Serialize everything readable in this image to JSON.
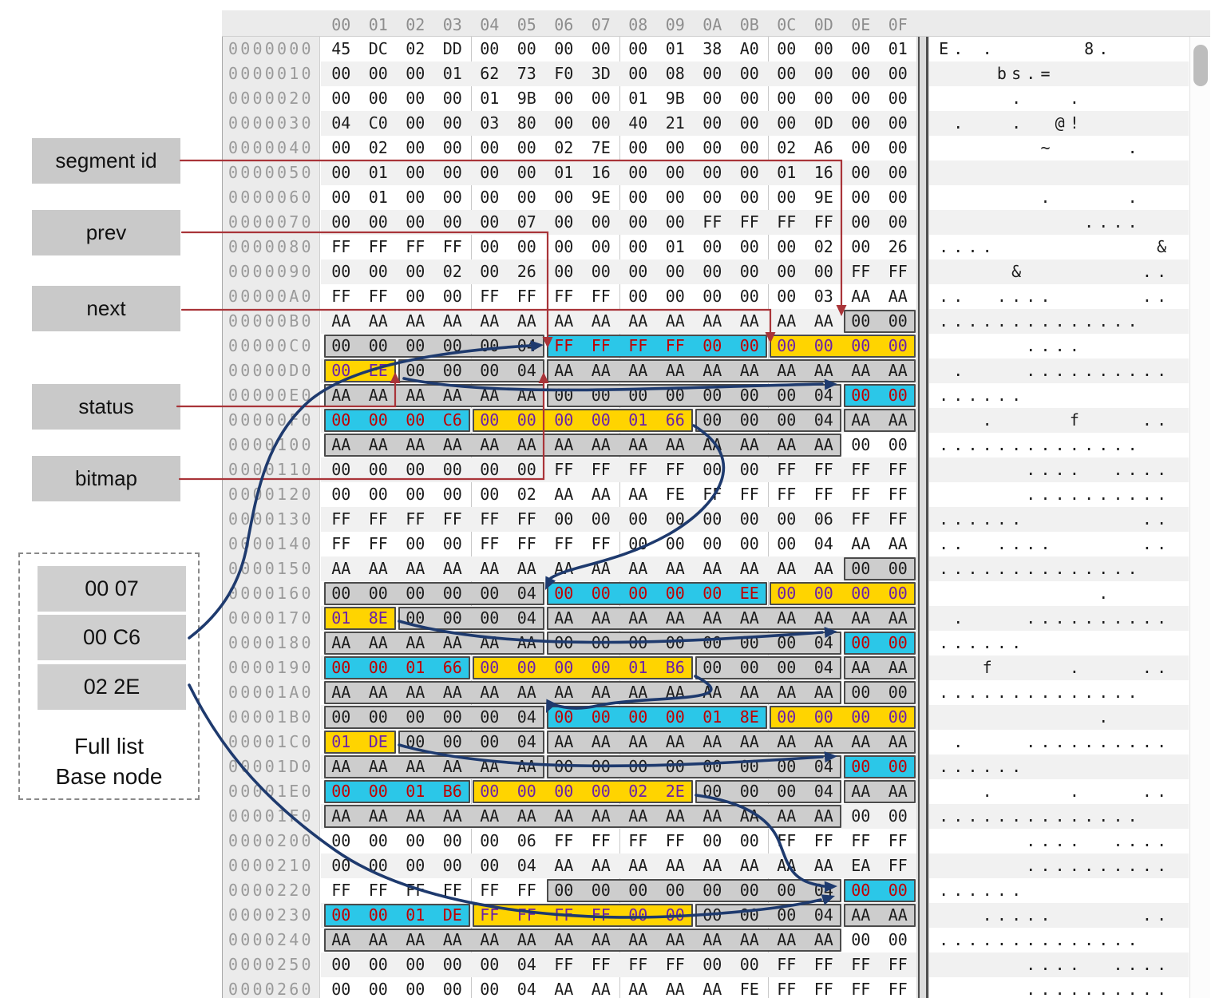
{
  "panel": {
    "column_headers": [
      "00",
      "01",
      "02",
      "03",
      "04",
      "05",
      "06",
      "07",
      "08",
      "09",
      "0A",
      "0B",
      "0C",
      "0D",
      "0E",
      "0F"
    ]
  },
  "labels": {
    "segment_id": "segment id",
    "prev": "prev",
    "next": "next",
    "status": "status",
    "bitmap": "bitmap"
  },
  "full_list": {
    "values": [
      "00 07",
      "00 C6",
      "02 2E"
    ],
    "caption_line1": "Full list",
    "caption_line2": "Base node"
  },
  "colors": {
    "highlight_cyan": "#2bc7e8",
    "highlight_yellow": "#ffd400",
    "box_gray": "#cdcdcd",
    "box_border": "#4b4b4b",
    "text_on_cyan": "#c00000",
    "text_on_yellow": "#6b21a8",
    "arrow_blue": "#1e3a6e",
    "annotation_red": "#a93439",
    "label_bg": "#c9c9c9",
    "zebra_row": "#f1f1f1",
    "chrome_gray": "#ebebeb"
  },
  "annotations": {
    "red_lines": [
      {
        "label": "segment id",
        "target": "00000B0:0E-0F"
      },
      {
        "label": "prev",
        "target": "00000C0:06-0B"
      },
      {
        "label": "next",
        "target": "00000C0:0C-0F"
      },
      {
        "label": "status",
        "target": "00000D0:00-01"
      },
      {
        "label": "bitmap",
        "target": "00000D0:02-05"
      }
    ],
    "blue_links": [
      {
        "from": "00000D0 value 00 EE",
        "to": "00000E0:0E-0F"
      },
      {
        "from": "full list 00 C6",
        "to": "00000C0:06"
      },
      {
        "from": "00000F0 value 01 66",
        "to": "0000160:06"
      },
      {
        "from": "0000170 value 01 8E",
        "to": "0000180:0E-0F"
      },
      {
        "from": "0000190 value 01 B6",
        "to": "00001B0:06"
      },
      {
        "from": "00001C0 value 01 DE",
        "to": "00001D0:0E-0F"
      },
      {
        "from": "00001E0 value 02 2E",
        "to": "0000220:0E-0F"
      },
      {
        "from": "full list 02 2E",
        "to": "0000220:0E-0F"
      }
    ]
  },
  "rows": [
    {
      "addr": "0000000",
      "bytes": [
        "45",
        "DC",
        "02",
        "DD",
        "00",
        "00",
        "00",
        "00",
        "00",
        "01",
        "38",
        "A0",
        "00",
        "00",
        "00",
        "01"
      ],
      "ascii": "E. .      8.    ",
      "spans": []
    },
    {
      "addr": "0000010",
      "bytes": [
        "00",
        "00",
        "00",
        "01",
        "62",
        "73",
        "F0",
        "3D",
        "00",
        "08",
        "00",
        "00",
        "00",
        "00",
        "00",
        "00"
      ],
      "ascii": "    bs.=        ",
      "spans": []
    },
    {
      "addr": "0000020",
      "bytes": [
        "00",
        "00",
        "00",
        "00",
        "01",
        "9B",
        "00",
        "00",
        "01",
        "9B",
        "00",
        "00",
        "00",
        "00",
        "00",
        "00"
      ],
      "ascii": "     .   .      ",
      "spans": []
    },
    {
      "addr": "0000030",
      "bytes": [
        "04",
        "C0",
        "00",
        "00",
        "03",
        "80",
        "00",
        "00",
        "40",
        "21",
        "00",
        "00",
        "00",
        "0D",
        "00",
        "00"
      ],
      "ascii": " .   .  @!      ",
      "spans": []
    },
    {
      "addr": "0000040",
      "bytes": [
        "00",
        "02",
        "00",
        "00",
        "00",
        "00",
        "02",
        "7E",
        "00",
        "00",
        "00",
        "00",
        "02",
        "A6",
        "00",
        "00"
      ],
      "ascii": "       ~     .  ",
      "spans": []
    },
    {
      "addr": "0000050",
      "bytes": [
        "00",
        "01",
        "00",
        "00",
        "00",
        "00",
        "01",
        "16",
        "00",
        "00",
        "00",
        "00",
        "01",
        "16",
        "00",
        "00"
      ],
      "ascii": "                ",
      "spans": []
    },
    {
      "addr": "0000060",
      "bytes": [
        "00",
        "01",
        "00",
        "00",
        "00",
        "00",
        "00",
        "9E",
        "00",
        "00",
        "00",
        "00",
        "00",
        "9E",
        "00",
        "00"
      ],
      "ascii": "       .     .  ",
      "spans": []
    },
    {
      "addr": "0000070",
      "bytes": [
        "00",
        "00",
        "00",
        "00",
        "00",
        "07",
        "00",
        "00",
        "00",
        "00",
        "FF",
        "FF",
        "FF",
        "FF",
        "00",
        "00"
      ],
      "ascii": "          ....  ",
      "spans": []
    },
    {
      "addr": "0000080",
      "bytes": [
        "FF",
        "FF",
        "FF",
        "FF",
        "00",
        "00",
        "00",
        "00",
        "00",
        "01",
        "00",
        "00",
        "00",
        "02",
        "00",
        "26"
      ],
      "ascii": "....           &",
      "spans": []
    },
    {
      "addr": "0000090",
      "bytes": [
        "00",
        "00",
        "00",
        "02",
        "00",
        "26",
        "00",
        "00",
        "00",
        "00",
        "00",
        "00",
        "00",
        "00",
        "FF",
        "FF"
      ],
      "ascii": "     &        ..",
      "spans": []
    },
    {
      "addr": "00000A0",
      "bytes": [
        "FF",
        "FF",
        "00",
        "00",
        "FF",
        "FF",
        "FF",
        "FF",
        "00",
        "00",
        "00",
        "00",
        "00",
        "03",
        "AA",
        "AA"
      ],
      "ascii": "..  ....      ..",
      "spans": []
    },
    {
      "addr": "00000B0",
      "bytes": [
        "AA",
        "AA",
        "AA",
        "AA",
        "AA",
        "AA",
        "AA",
        "AA",
        "AA",
        "AA",
        "AA",
        "AA",
        "AA",
        "AA",
        "00",
        "00"
      ],
      "ascii": "..............  ",
      "spans": [
        [
          14,
          15,
          "gray"
        ]
      ]
    },
    {
      "addr": "00000C0",
      "bytes": [
        "00",
        "00",
        "00",
        "00",
        "00",
        "04",
        "FF",
        "FF",
        "FF",
        "FF",
        "00",
        "00",
        "00",
        "00",
        "00",
        "00"
      ],
      "ascii": "      ....      ",
      "spans": [
        [
          0,
          5,
          "gray"
        ],
        [
          6,
          11,
          "cyan"
        ],
        [
          12,
          15,
          "yellow"
        ]
      ]
    },
    {
      "addr": "00000D0",
      "bytes": [
        "00",
        "EE",
        "00",
        "00",
        "00",
        "04",
        "AA",
        "AA",
        "AA",
        "AA",
        "AA",
        "AA",
        "AA",
        "AA",
        "AA",
        "AA"
      ],
      "ascii": " .    ..........",
      "spans": [
        [
          0,
          1,
          "yellow"
        ],
        [
          2,
          5,
          "gray"
        ],
        [
          6,
          15,
          "gray"
        ]
      ]
    },
    {
      "addr": "00000E0",
      "bytes": [
        "AA",
        "AA",
        "AA",
        "AA",
        "AA",
        "AA",
        "00",
        "00",
        "00",
        "00",
        "00",
        "00",
        "00",
        "04",
        "00",
        "00"
      ],
      "ascii": "......          ",
      "spans": [
        [
          0,
          5,
          "gray"
        ],
        [
          6,
          13,
          "gray"
        ],
        [
          14,
          15,
          "cyan"
        ]
      ]
    },
    {
      "addr": "00000F0",
      "bytes": [
        "00",
        "00",
        "00",
        "C6",
        "00",
        "00",
        "00",
        "00",
        "01",
        "66",
        "00",
        "00",
        "00",
        "04",
        "AA",
        "AA"
      ],
      "ascii": "   .     f    ..",
      "spans": [
        [
          0,
          3,
          "cyan"
        ],
        [
          4,
          9,
          "yellow"
        ],
        [
          10,
          13,
          "gray"
        ],
        [
          14,
          15,
          "gray"
        ]
      ]
    },
    {
      "addr": "0000100",
      "bytes": [
        "AA",
        "AA",
        "AA",
        "AA",
        "AA",
        "AA",
        "AA",
        "AA",
        "AA",
        "AA",
        "AA",
        "AA",
        "AA",
        "AA",
        "00",
        "00"
      ],
      "ascii": "..............  ",
      "spans": [
        [
          0,
          13,
          "gray"
        ]
      ]
    },
    {
      "addr": "0000110",
      "bytes": [
        "00",
        "00",
        "00",
        "00",
        "00",
        "00",
        "FF",
        "FF",
        "FF",
        "FF",
        "00",
        "00",
        "FF",
        "FF",
        "FF",
        "FF"
      ],
      "ascii": "      ....  ....",
      "spans": []
    },
    {
      "addr": "0000120",
      "bytes": [
        "00",
        "00",
        "00",
        "00",
        "00",
        "02",
        "AA",
        "AA",
        "AA",
        "FE",
        "FF",
        "FF",
        "FF",
        "FF",
        "FF",
        "FF"
      ],
      "ascii": "      ..........",
      "spans": []
    },
    {
      "addr": "0000130",
      "bytes": [
        "FF",
        "FF",
        "FF",
        "FF",
        "FF",
        "FF",
        "00",
        "00",
        "00",
        "00",
        "00",
        "00",
        "00",
        "06",
        "FF",
        "FF"
      ],
      "ascii": "......        ..",
      "spans": []
    },
    {
      "addr": "0000140",
      "bytes": [
        "FF",
        "FF",
        "00",
        "00",
        "FF",
        "FF",
        "FF",
        "FF",
        "00",
        "00",
        "00",
        "00",
        "00",
        "04",
        "AA",
        "AA"
      ],
      "ascii": "..  ....      ..",
      "spans": []
    },
    {
      "addr": "0000150",
      "bytes": [
        "AA",
        "AA",
        "AA",
        "AA",
        "AA",
        "AA",
        "AA",
        "AA",
        "AA",
        "AA",
        "AA",
        "AA",
        "AA",
        "AA",
        "00",
        "00"
      ],
      "ascii": "..............  ",
      "spans": [
        [
          14,
          15,
          "gray"
        ]
      ]
    },
    {
      "addr": "0000160",
      "bytes": [
        "00",
        "00",
        "00",
        "00",
        "00",
        "04",
        "00",
        "00",
        "00",
        "00",
        "00",
        "EE",
        "00",
        "00",
        "00",
        "00"
      ],
      "ascii": "           .    ",
      "spans": [
        [
          0,
          5,
          "gray"
        ],
        [
          6,
          11,
          "cyan"
        ],
        [
          12,
          15,
          "yellow"
        ]
      ]
    },
    {
      "addr": "0000170",
      "bytes": [
        "01",
        "8E",
        "00",
        "00",
        "00",
        "04",
        "AA",
        "AA",
        "AA",
        "AA",
        "AA",
        "AA",
        "AA",
        "AA",
        "AA",
        "AA"
      ],
      "ascii": " .    ..........",
      "spans": [
        [
          0,
          1,
          "yellow"
        ],
        [
          2,
          5,
          "gray"
        ],
        [
          6,
          15,
          "gray"
        ]
      ]
    },
    {
      "addr": "0000180",
      "bytes": [
        "AA",
        "AA",
        "AA",
        "AA",
        "AA",
        "AA",
        "00",
        "00",
        "00",
        "00",
        "00",
        "00",
        "00",
        "04",
        "00",
        "00"
      ],
      "ascii": "......          ",
      "spans": [
        [
          0,
          5,
          "gray"
        ],
        [
          6,
          13,
          "gray"
        ],
        [
          14,
          15,
          "cyan"
        ]
      ]
    },
    {
      "addr": "0000190",
      "bytes": [
        "00",
        "00",
        "01",
        "66",
        "00",
        "00",
        "00",
        "00",
        "01",
        "B6",
        "00",
        "00",
        "00",
        "04",
        "AA",
        "AA"
      ],
      "ascii": "   f     .    ..",
      "spans": [
        [
          0,
          3,
          "cyan"
        ],
        [
          4,
          9,
          "yellow"
        ],
        [
          10,
          13,
          "gray"
        ],
        [
          14,
          15,
          "gray"
        ]
      ]
    },
    {
      "addr": "00001A0",
      "bytes": [
        "AA",
        "AA",
        "AA",
        "AA",
        "AA",
        "AA",
        "AA",
        "AA",
        "AA",
        "AA",
        "AA",
        "AA",
        "AA",
        "AA",
        "00",
        "00"
      ],
      "ascii": "..............  ",
      "spans": [
        [
          0,
          13,
          "gray"
        ],
        [
          14,
          15,
          "gray"
        ]
      ]
    },
    {
      "addr": "00001B0",
      "bytes": [
        "00",
        "00",
        "00",
        "00",
        "00",
        "04",
        "00",
        "00",
        "00",
        "00",
        "01",
        "8E",
        "00",
        "00",
        "00",
        "00"
      ],
      "ascii": "           .    ",
      "spans": [
        [
          0,
          5,
          "gray"
        ],
        [
          6,
          11,
          "cyan"
        ],
        [
          12,
          15,
          "yellow"
        ]
      ]
    },
    {
      "addr": "00001C0",
      "bytes": [
        "01",
        "DE",
        "00",
        "00",
        "00",
        "04",
        "AA",
        "AA",
        "AA",
        "AA",
        "AA",
        "AA",
        "AA",
        "AA",
        "AA",
        "AA"
      ],
      "ascii": " .    ..........",
      "spans": [
        [
          0,
          1,
          "yellow"
        ],
        [
          2,
          5,
          "gray"
        ],
        [
          6,
          15,
          "gray"
        ]
      ]
    },
    {
      "addr": "00001D0",
      "bytes": [
        "AA",
        "AA",
        "AA",
        "AA",
        "AA",
        "AA",
        "00",
        "00",
        "00",
        "00",
        "00",
        "00",
        "00",
        "04",
        "00",
        "00"
      ],
      "ascii": "......          ",
      "spans": [
        [
          0,
          5,
          "gray"
        ],
        [
          6,
          13,
          "gray"
        ],
        [
          14,
          15,
          "cyan"
        ]
      ]
    },
    {
      "addr": "00001E0",
      "bytes": [
        "00",
        "00",
        "01",
        "B6",
        "00",
        "00",
        "00",
        "00",
        "02",
        "2E",
        "00",
        "00",
        "00",
        "04",
        "AA",
        "AA"
      ],
      "ascii": "   .     .    ..",
      "spans": [
        [
          0,
          3,
          "cyan"
        ],
        [
          4,
          9,
          "yellow"
        ],
        [
          10,
          13,
          "gray"
        ],
        [
          14,
          15,
          "gray"
        ]
      ]
    },
    {
      "addr": "00001F0",
      "bytes": [
        "AA",
        "AA",
        "AA",
        "AA",
        "AA",
        "AA",
        "AA",
        "AA",
        "AA",
        "AA",
        "AA",
        "AA",
        "AA",
        "AA",
        "00",
        "00"
      ],
      "ascii": "..............  ",
      "spans": [
        [
          0,
          13,
          "gray"
        ]
      ]
    },
    {
      "addr": "0000200",
      "bytes": [
        "00",
        "00",
        "00",
        "00",
        "00",
        "06",
        "FF",
        "FF",
        "FF",
        "FF",
        "00",
        "00",
        "FF",
        "FF",
        "FF",
        "FF"
      ],
      "ascii": "      ....  ....",
      "spans": []
    },
    {
      "addr": "0000210",
      "bytes": [
        "00",
        "00",
        "00",
        "00",
        "00",
        "04",
        "AA",
        "AA",
        "AA",
        "AA",
        "AA",
        "AA",
        "AA",
        "AA",
        "EA",
        "FF"
      ],
      "ascii": "      ..........",
      "spans": []
    },
    {
      "addr": "0000220",
      "bytes": [
        "FF",
        "FF",
        "FF",
        "FF",
        "FF",
        "FF",
        "00",
        "00",
        "00",
        "00",
        "00",
        "00",
        "00",
        "04",
        "00",
        "00"
      ],
      "ascii": "......          ",
      "spans": [
        [
          6,
          13,
          "gray"
        ],
        [
          14,
          15,
          "cyan"
        ]
      ]
    },
    {
      "addr": "0000230",
      "bytes": [
        "00",
        "00",
        "01",
        "DE",
        "FF",
        "FF",
        "FF",
        "FF",
        "00",
        "00",
        "00",
        "00",
        "00",
        "04",
        "AA",
        "AA"
      ],
      "ascii": "   .....      ..",
      "spans": [
        [
          0,
          3,
          "cyan"
        ],
        [
          4,
          9,
          "yellow"
        ],
        [
          10,
          13,
          "gray"
        ],
        [
          14,
          15,
          "gray"
        ]
      ]
    },
    {
      "addr": "0000240",
      "bytes": [
        "AA",
        "AA",
        "AA",
        "AA",
        "AA",
        "AA",
        "AA",
        "AA",
        "AA",
        "AA",
        "AA",
        "AA",
        "AA",
        "AA",
        "00",
        "00"
      ],
      "ascii": "..............  ",
      "spans": [
        [
          0,
          13,
          "gray"
        ]
      ]
    },
    {
      "addr": "0000250",
      "bytes": [
        "00",
        "00",
        "00",
        "00",
        "00",
        "04",
        "FF",
        "FF",
        "FF",
        "FF",
        "00",
        "00",
        "FF",
        "FF",
        "FF",
        "FF"
      ],
      "ascii": "      ....  ....",
      "spans": []
    },
    {
      "addr": "0000260",
      "bytes": [
        "00",
        "00",
        "00",
        "00",
        "00",
        "04",
        "AA",
        "AA",
        "AA",
        "AA",
        "AA",
        "FE",
        "FF",
        "FF",
        "FF",
        "FF"
      ],
      "ascii": "      ..........",
      "spans": []
    }
  ]
}
